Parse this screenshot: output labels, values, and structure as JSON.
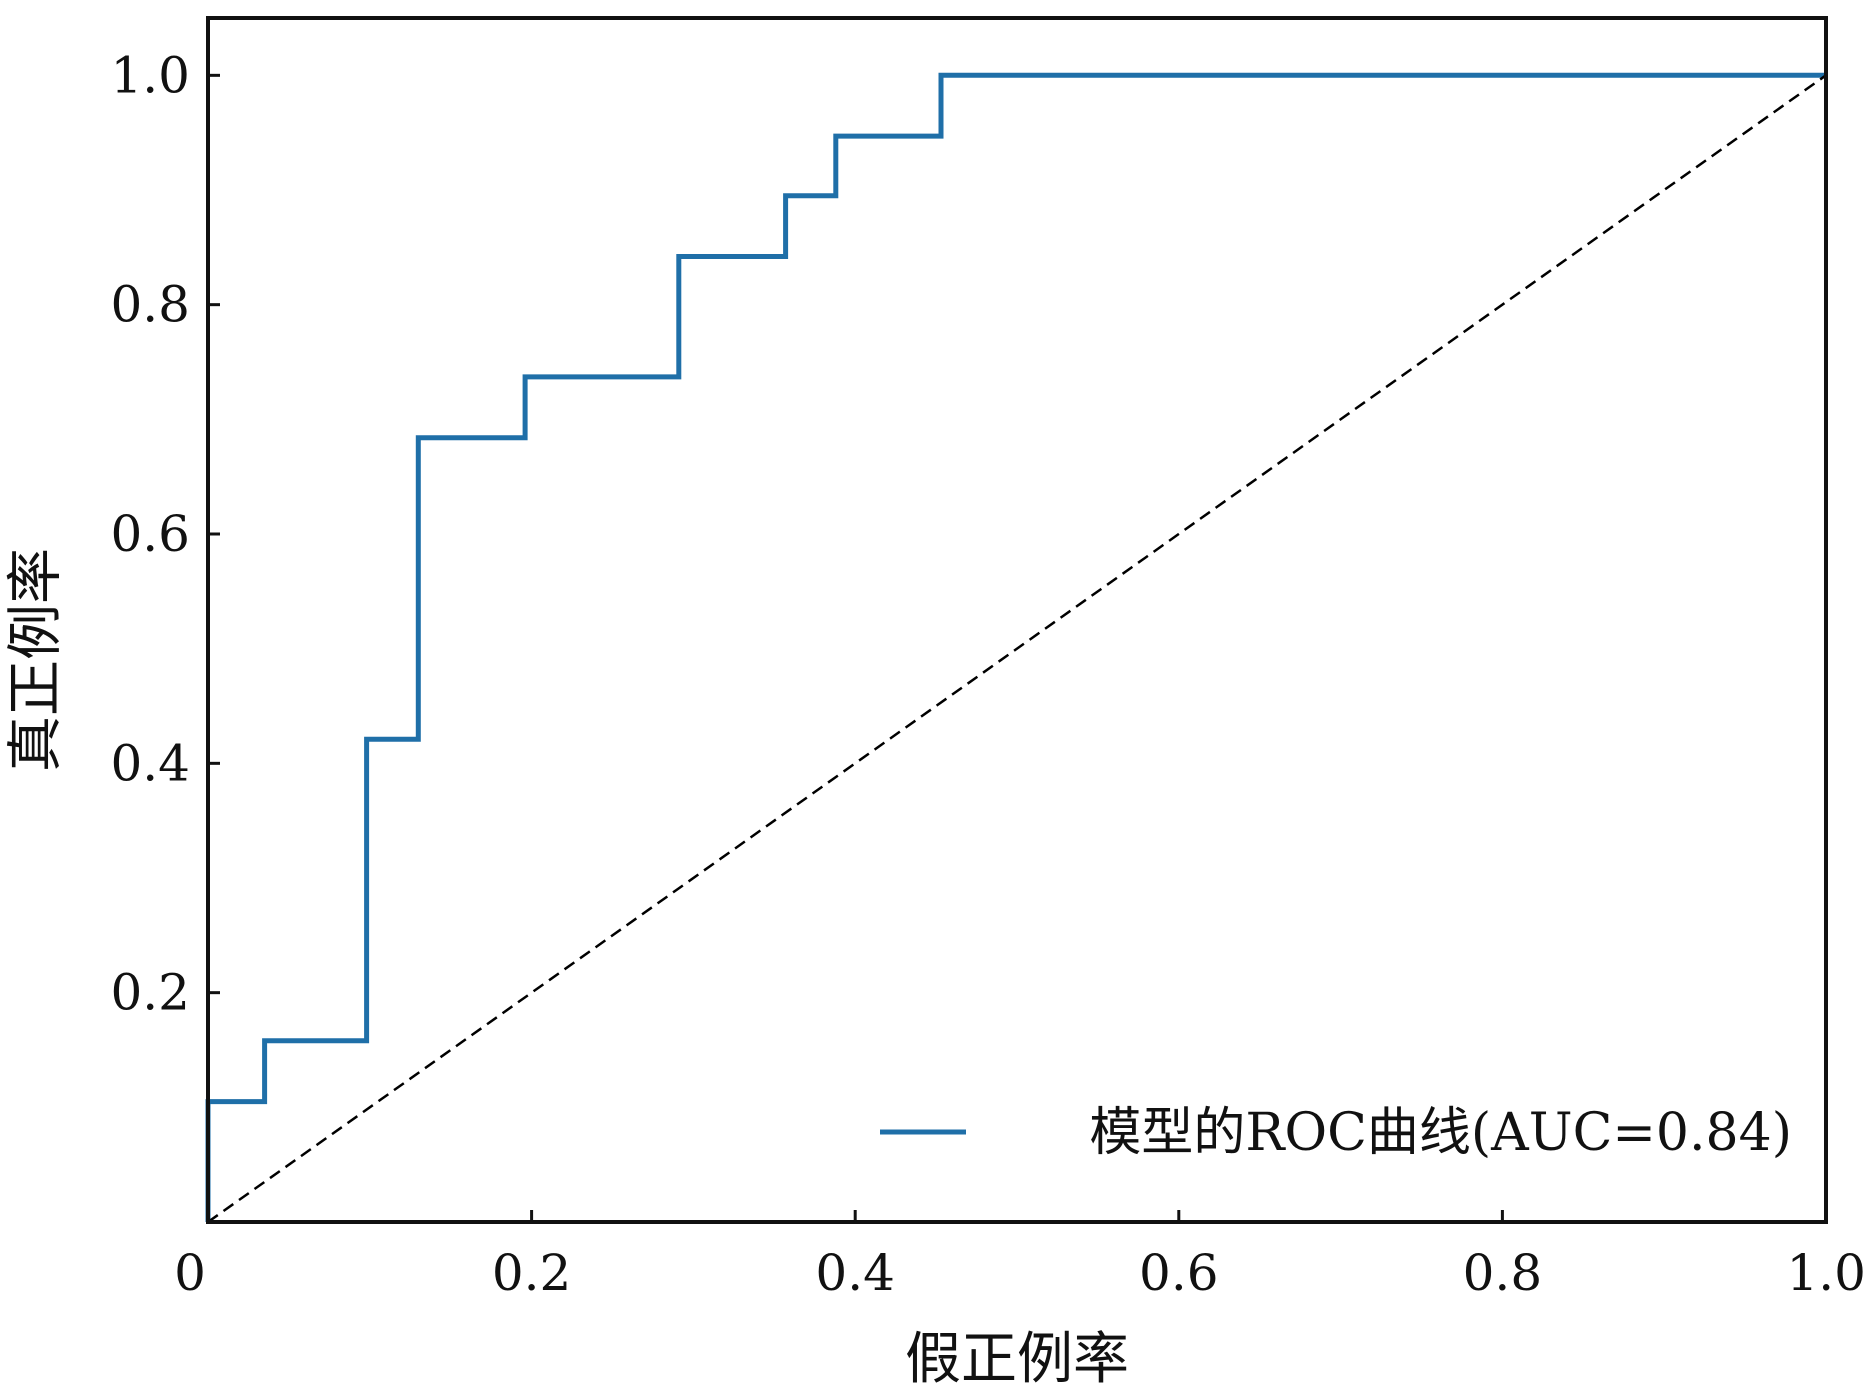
{
  "chart_data": {
    "type": "line",
    "title": "",
    "xlabel": "假正例率",
    "ylabel": "真正例率",
    "xlim": [
      0,
      1.0
    ],
    "ylim": [
      0,
      1.05
    ],
    "x_ticks": [
      0,
      0.2,
      0.4,
      0.6,
      0.8,
      1.0
    ],
    "x_tick_labels": [
      "0",
      "0.2",
      "0.4",
      "0.6",
      "0.8",
      "1.0"
    ],
    "y_ticks": [
      0.2,
      0.4,
      0.6,
      0.8,
      1.0
    ],
    "y_tick_labels": [
      "0.2",
      "0.4",
      "0.6",
      "0.8",
      "1.0"
    ],
    "grid": false,
    "legend_position": "bottom-right",
    "series": [
      {
        "name": "模型的ROC曲线(AUC=0.84)",
        "color": "#1f6fa8",
        "style": "solid",
        "step": true,
        "x": [
          0.0,
          0.0,
          0.035,
          0.035,
          0.098,
          0.098,
          0.13,
          0.13,
          0.196,
          0.196,
          0.291,
          0.291,
          0.357,
          0.357,
          0.388,
          0.388,
          0.453,
          0.453,
          1.0
        ],
        "y": [
          0.0,
          0.105,
          0.105,
          0.158,
          0.158,
          0.421,
          0.421,
          0.684,
          0.684,
          0.737,
          0.737,
          0.842,
          0.842,
          0.895,
          0.895,
          0.947,
          0.947,
          1.0,
          1.0
        ]
      },
      {
        "name": "",
        "color": "#000000",
        "style": "dashed",
        "step": false,
        "x": [
          0.0,
          1.0
        ],
        "y": [
          0.0,
          1.0
        ]
      }
    ]
  }
}
